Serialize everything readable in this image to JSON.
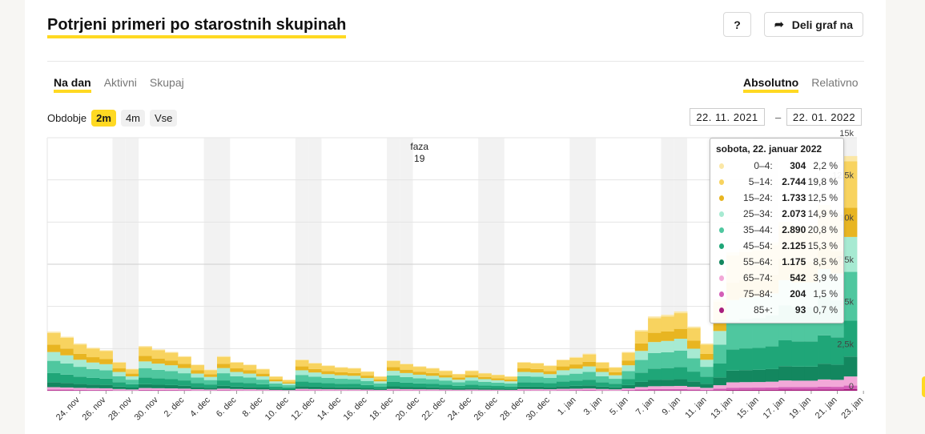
{
  "header": {
    "title": "Potrjeni primeri po starostnih skupinah",
    "help_label": "?",
    "share_label": "Deli graf na"
  },
  "tabs_left": [
    "Na dan",
    "Aktivni",
    "Skupaj"
  ],
  "tabs_right": [
    "Absolutno",
    "Relativno"
  ],
  "period": {
    "label": "Obdobje",
    "options": [
      "2m",
      "4m",
      "Vse"
    ],
    "selected": "2m"
  },
  "dates": {
    "from": "22. 11. 2021",
    "to": "22. 01. 2022",
    "separator": "–"
  },
  "colors": {
    "accent": "#ffd922"
  },
  "tooltip": {
    "title": "sobota, 22. januar 2022",
    "rows": [
      {
        "age": "0–4:",
        "value": "304",
        "pct": "2,2 %",
        "color": "#fbe7a6"
      },
      {
        "age": "5–14:",
        "value": "2.744",
        "pct": "19,8 %",
        "color": "#f8d35f"
      },
      {
        "age": "15–24:",
        "value": "1.733",
        "pct": "12,5 %",
        "color": "#e8b521"
      },
      {
        "age": "25–34:",
        "value": "2.073",
        "pct": "14,9 %",
        "color": "#a7ead2"
      },
      {
        "age": "35–44:",
        "value": "2.890",
        "pct": "20,8 %",
        "color": "#4fc79f"
      },
      {
        "age": "45–54:",
        "value": "2.125",
        "pct": "15,3 %",
        "color": "#1fa678"
      },
      {
        "age": "55–64:",
        "value": "1.175",
        "pct": "8,5 %",
        "color": "#13875f"
      },
      {
        "age": "65–74:",
        "value": "542",
        "pct": "3,9 %",
        "color": "#f2a8d8"
      },
      {
        "age": "75–84:",
        "value": "204",
        "pct": "1,5 %",
        "color": "#d45fb8"
      },
      {
        "age": "85+:",
        "value": "93",
        "pct": "0,7 %",
        "color": "#a81e7e"
      }
    ]
  },
  "chart_data": {
    "type": "bar",
    "stacked": true,
    "ylabels": [
      "0",
      "2,5k",
      "5k",
      "7,5k",
      "10k",
      "12,5k",
      "15k"
    ],
    "ylim": [
      0,
      15000
    ],
    "annotation": {
      "text": [
        "faza",
        "19"
      ],
      "date": "20. dec"
    },
    "xticks": [
      "24. nov",
      "26. nov",
      "28. nov",
      "30. nov",
      "2. dec",
      "4. dec",
      "6. dec",
      "8. dec",
      "10. dec",
      "12. dec",
      "14. dec",
      "16. dec",
      "18. dec",
      "20. dec",
      "22. dec",
      "24. dec",
      "26. dec",
      "28. dec",
      "30. dec",
      "1. jan",
      "3. jan",
      "5. jan",
      "7. jan",
      "9. jan",
      "11. jan",
      "13. jan",
      "15. jan",
      "17. jan",
      "19. jan",
      "21. jan",
      "23. jan"
    ],
    "start_date": "2021-11-22",
    "weekend_shading": true,
    "series": [
      {
        "name": "0–4",
        "color": "#fbe7a6"
      },
      {
        "name": "5–14",
        "color": "#f8d35f"
      },
      {
        "name": "15–24",
        "color": "#e8b521"
      },
      {
        "name": "25–34",
        "color": "#a7ead2"
      },
      {
        "name": "35–44",
        "color": "#4fc79f"
      },
      {
        "name": "45–54",
        "color": "#1fa678"
      },
      {
        "name": "55–64",
        "color": "#13875f"
      },
      {
        "name": "65–74",
        "color": "#f2a8d8"
      },
      {
        "name": "75–84",
        "color": "#d45fb8"
      },
      {
        "name": "85+",
        "color": "#a81e7e"
      }
    ],
    "totals": [
      3500,
      3200,
      2800,
      2550,
      2400,
      1700,
      1300,
      2650,
      2450,
      2300,
      2050,
      1550,
      1250,
      2050,
      1700,
      1550,
      1300,
      850,
      650,
      1850,
      1650,
      1500,
      1400,
      1350,
      1150,
      850,
      1800,
      1600,
      1450,
      1350,
      1200,
      1000,
      1200,
      1050,
      950,
      850,
      1700,
      1650,
      1500,
      1850,
      2000,
      2200,
      1700,
      1400,
      2300,
      3600,
      4400,
      4500,
      4700,
      3800,
      2800,
      5400,
      8200,
      8400,
      8500,
      8800,
      10000,
      9800,
      9800,
      11000,
      10600,
      13900
    ]
  }
}
